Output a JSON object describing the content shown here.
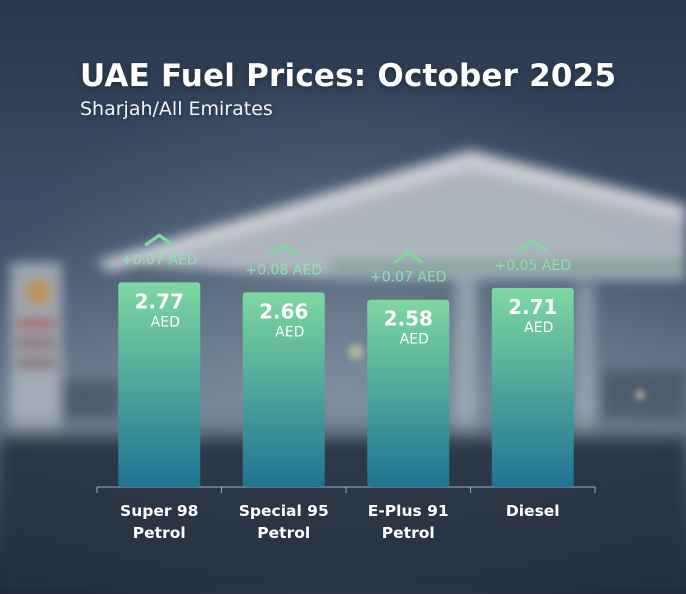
{
  "chart_data": {
    "type": "bar",
    "title": "UAE Fuel Prices: October 2025",
    "subtitle": "Sharjah/All Emirates",
    "categories": [
      [
        "Super 98",
        "Petrol"
      ],
      [
        "Special 95",
        "Petrol"
      ],
      [
        "E-Plus 91",
        "Petrol"
      ],
      [
        "Diesel"
      ]
    ],
    "values": [
      2.77,
      2.66,
      2.58,
      2.71
    ],
    "value_labels": [
      "2.77",
      "2.66",
      "2.58",
      "2.71"
    ],
    "unit_label": "AED",
    "changes": [
      "+0.07 AED",
      "+0.08 AED",
      "+0.07 AED",
      "+0.05 AED"
    ],
    "change_direction": [
      "up",
      "up",
      "up",
      "up"
    ],
    "grid": false,
    "legend": "none",
    "colors": {
      "bar_top": "#7fd8a0",
      "bar_bottom": "#1f7394",
      "change_text": "#8fe0b0",
      "change_arrow": "#7fd8a0",
      "label_text": "#ffffff"
    }
  }
}
